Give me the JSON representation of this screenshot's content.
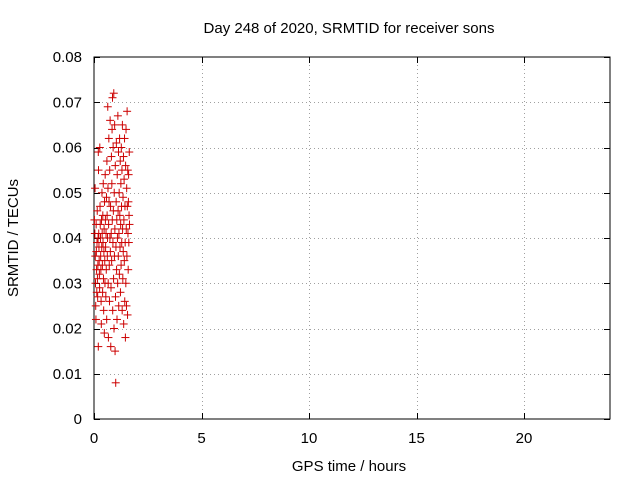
{
  "chart_data": {
    "type": "scatter",
    "title": "Day 248 of 2020, SRMTID for receiver sons",
    "xlabel": "GPS time / hours",
    "ylabel": "SRMTID / TECUs",
    "xlim": [
      0,
      24
    ],
    "ylim": [
      0,
      0.08
    ],
    "x_ticks": [
      0,
      5,
      10,
      15,
      20
    ],
    "y_ticks": [
      0,
      0.01,
      0.02,
      0.03,
      0.04,
      0.05,
      0.06,
      0.07,
      0.08
    ],
    "x_tick_labels": [
      "0",
      "5",
      "10",
      "15",
      "20"
    ],
    "y_tick_labels": [
      "0",
      "0.01",
      "0.02",
      "0.03",
      "0.04",
      "0.05",
      "0.06",
      "0.07",
      "0.08"
    ],
    "grid": true,
    "marker": "plus",
    "series": [
      {
        "name": "sons",
        "color": "#cc0000",
        "points": [
          [
            0.02,
            0.044
          ],
          [
            0.04,
            0.041
          ],
          [
            0.05,
            0.051
          ],
          [
            0.06,
            0.036
          ],
          [
            0.07,
            0.03
          ],
          [
            0.08,
            0.025
          ],
          [
            0.09,
            0.022
          ],
          [
            0.1,
            0.043
          ],
          [
            0.11,
            0.037
          ],
          [
            0.12,
            0.033
          ],
          [
            0.13,
            0.028
          ],
          [
            0.14,
            0.039
          ],
          [
            0.15,
            0.046
          ],
          [
            0.16,
            0.031
          ],
          [
            0.17,
            0.027
          ],
          [
            0.18,
            0.034
          ],
          [
            0.19,
            0.04
          ],
          [
            0.2,
            0.016
          ],
          [
            0.2,
            0.059
          ],
          [
            0.21,
            0.055
          ],
          [
            0.22,
            0.041
          ],
          [
            0.23,
            0.038
          ],
          [
            0.24,
            0.035
          ],
          [
            0.25,
            0.032
          ],
          [
            0.26,
            0.029
          ],
          [
            0.27,
            0.06
          ],
          [
            0.28,
            0.047
          ],
          [
            0.29,
            0.043
          ],
          [
            0.3,
            0.04
          ],
          [
            0.31,
            0.036
          ],
          [
            0.32,
            0.033
          ],
          [
            0.33,
            0.026
          ],
          [
            0.34,
            0.021
          ],
          [
            0.35,
            0.044
          ],
          [
            0.36,
            0.038
          ],
          [
            0.37,
            0.05
          ],
          [
            0.38,
            0.041
          ],
          [
            0.39,
            0.034
          ],
          [
            0.4,
            0.028
          ],
          [
            0.41,
            0.045
          ],
          [
            0.42,
            0.039
          ],
          [
            0.43,
            0.052
          ],
          [
            0.44,
            0.031
          ],
          [
            0.45,
            0.024
          ],
          [
            0.46,
            0.037
          ],
          [
            0.47,
            0.042
          ],
          [
            0.48,
            0.019
          ],
          [
            0.49,
            0.048
          ],
          [
            0.5,
            0.035
          ],
          [
            0.51,
            0.03
          ],
          [
            0.52,
            0.054
          ],
          [
            0.53,
            0.044
          ],
          [
            0.54,
            0.038
          ],
          [
            0.55,
            0.027
          ],
          [
            0.56,
            0.041
          ],
          [
            0.57,
            0.033
          ],
          [
            0.58,
            0.049
          ],
          [
            0.59,
            0.022
          ],
          [
            0.6,
            0.057
          ],
          [
            0.61,
            0.045
          ],
          [
            0.62,
            0.036
          ],
          [
            0.63,
            0.04
          ],
          [
            0.64,
            0.069
          ],
          [
            0.65,
            0.051
          ],
          [
            0.66,
            0.03
          ],
          [
            0.67,
            0.018
          ],
          [
            0.68,
            0.043
          ],
          [
            0.69,
            0.062
          ],
          [
            0.7,
            0.048
          ],
          [
            0.71,
            0.034
          ],
          [
            0.72,
            0.026
          ],
          [
            0.73,
            0.055
          ],
          [
            0.74,
            0.04
          ],
          [
            0.75,
            0.066
          ],
          [
            0.76,
            0.037
          ],
          [
            0.77,
            0.047
          ],
          [
            0.78,
            0.016
          ],
          [
            0.79,
            0.029
          ],
          [
            0.8,
            0.041
          ],
          [
            0.81,
            0.058
          ],
          [
            0.82,
            0.035
          ],
          [
            0.83,
            0.052
          ],
          [
            0.84,
            0.064
          ],
          [
            0.85,
            0.044
          ],
          [
            0.86,
            0.071
          ],
          [
            0.87,
            0.024
          ],
          [
            0.88,
            0.039
          ],
          [
            0.89,
            0.06
          ],
          [
            0.9,
            0.046
          ],
          [
            0.91,
            0.031
          ],
          [
            0.92,
            0.072
          ],
          [
            0.93,
            0.02
          ],
          [
            0.94,
            0.05
          ],
          [
            0.95,
            0.036
          ],
          [
            0.96,
            0.065
          ],
          [
            0.97,
            0.042
          ],
          [
            0.98,
            0.015
          ],
          [
            0.99,
            0.056
          ],
          [
            1.0,
            0.027
          ],
          [
            1.01,
            0.008
          ],
          [
            1.02,
            0.038
          ],
          [
            1.03,
            0.048
          ],
          [
            1.04,
            0.061
          ],
          [
            1.05,
            0.033
          ],
          [
            1.06,
            0.044
          ],
          [
            1.07,
            0.022
          ],
          [
            1.08,
            0.054
          ],
          [
            1.09,
            0.04
          ],
          [
            1.1,
            0.03
          ],
          [
            1.11,
            0.067
          ],
          [
            1.12,
            0.046
          ],
          [
            1.13,
            0.036
          ],
          [
            1.14,
            0.059
          ],
          [
            1.15,
            0.025
          ],
          [
            1.16,
            0.041
          ],
          [
            1.17,
            0.05
          ],
          [
            1.18,
            0.032
          ],
          [
            1.19,
            0.062
          ],
          [
            1.2,
            0.045
          ],
          [
            1.21,
            0.038
          ],
          [
            1.22,
            0.057
          ],
          [
            1.23,
            0.028
          ],
          [
            1.24,
            0.043
          ],
          [
            1.25,
            0.052
          ],
          [
            1.26,
            0.034
          ],
          [
            1.27,
            0.06
          ],
          [
            1.28,
            0.047
          ],
          [
            1.29,
            0.039
          ],
          [
            1.3,
            0.055
          ],
          [
            1.31,
            0.024
          ],
          [
            1.32,
            0.065
          ],
          [
            1.33,
            0.042
          ],
          [
            1.34,
            0.031
          ],
          [
            1.35,
            0.049
          ],
          [
            1.36,
            0.037
          ],
          [
            1.37,
            0.058
          ],
          [
            1.38,
            0.021
          ],
          [
            1.39,
            0.044
          ],
          [
            1.4,
            0.053
          ],
          [
            1.41,
            0.035
          ],
          [
            1.42,
            0.062
          ],
          [
            1.43,
            0.026
          ],
          [
            1.44,
            0.047
          ],
          [
            1.45,
            0.039
          ],
          [
            1.46,
            0.018
          ],
          [
            1.47,
            0.056
          ],
          [
            1.48,
            0.03
          ],
          [
            1.49,
            0.064
          ],
          [
            1.5,
            0.042
          ],
          [
            1.51,
            0.025
          ],
          [
            1.52,
            0.051
          ],
          [
            1.53,
            0.036
          ],
          [
            1.54,
            0.068
          ],
          [
            1.55,
            0.047
          ],
          [
            1.56,
            0.023
          ],
          [
            1.57,
            0.055
          ],
          [
            1.58,
            0.041
          ],
          [
            1.59,
            0.033
          ],
          [
            1.6,
            0.048
          ],
          [
            1.61,
            0.054
          ],
          [
            1.62,
            0.039
          ],
          [
            1.63,
            0.045
          ],
          [
            1.64,
            0.059
          ],
          [
            1.65,
            0.043
          ]
        ]
      }
    ]
  }
}
